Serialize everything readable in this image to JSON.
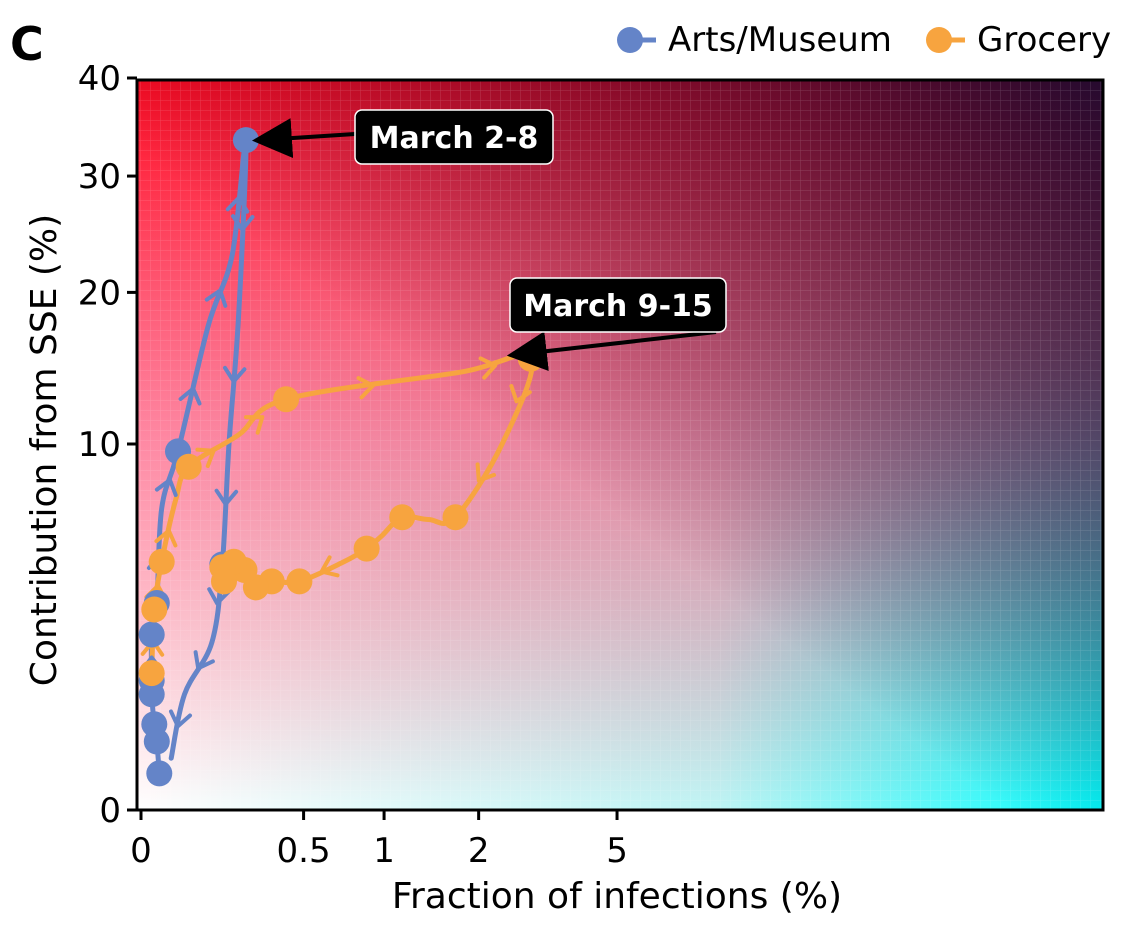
{
  "panel_label": "C",
  "chart_data": {
    "type": "line",
    "xlabel": "Fraction of infections (%)",
    "ylabel": "Contribution from SSE (%)",
    "x_scale": "symlog",
    "y_scale": "sqrt",
    "xlim": [
      0,
      7
    ],
    "ylim": [
      0,
      40
    ],
    "x_ticks": [
      0,
      0.5,
      1,
      2,
      5
    ],
    "x_tick_labels": [
      "0",
      "0.5",
      "1",
      "2",
      "5"
    ],
    "y_ticks": [
      0,
      10,
      20,
      30,
      40
    ],
    "y_tick_labels": [
      "0",
      "10",
      "20",
      "30",
      "40"
    ],
    "legend_position": "top-right",
    "series": [
      {
        "name": "Arts/Museum",
        "color": "#6484c8",
        "points": [
          [
            0.035,
            0.1
          ],
          [
            0.03,
            0.35
          ],
          [
            0.025,
            0.55
          ],
          [
            0.02,
            1.0
          ],
          [
            0.02,
            1.25
          ],
          [
            0.02,
            2.3
          ],
          [
            0.03,
            3.2
          ],
          [
            0.04,
            6.8
          ],
          [
            0.075,
            9.6
          ],
          [
            0.15,
            17.5
          ],
          [
            0.22,
            23
          ],
          [
            0.265,
            33.5
          ],
          [
            0.24,
            18
          ],
          [
            0.21,
            10
          ],
          [
            0.19,
            4.5
          ],
          [
            0.16,
            2.1
          ],
          [
            0.09,
            1.0
          ],
          [
            0.06,
            0.2
          ]
        ]
      },
      {
        "name": "Grocery",
        "color": "#f7a43f",
        "points": [
          [
            0.02,
            1.4
          ],
          [
            0.025,
            3.0
          ],
          [
            0.04,
            4.6
          ],
          [
            0.07,
            7.2
          ],
          [
            0.1,
            8.8
          ],
          [
            0.24,
            10.5
          ],
          [
            0.42,
            12.6
          ],
          [
            1.75,
            14.3
          ],
          [
            2.85,
            15.2
          ],
          [
            2.35,
            10
          ],
          [
            1.7,
            6.4
          ],
          [
            1.4,
            6.3
          ],
          [
            1.15,
            6.4
          ],
          [
            0.98,
            5.6
          ],
          [
            0.87,
            5.1
          ],
          [
            0.72,
            4.6
          ],
          [
            0.48,
            3.9
          ],
          [
            0.36,
            3.9
          ],
          [
            0.3,
            3.7
          ],
          [
            0.26,
            4.3
          ],
          [
            0.225,
            4.6
          ],
          [
            0.19,
            4.4
          ],
          [
            0.195,
            3.9
          ]
        ],
        "markers": [
          [
            0.02,
            1.4
          ],
          [
            0.025,
            3.0
          ],
          [
            0.04,
            4.6
          ],
          [
            0.1,
            8.8
          ],
          [
            0.42,
            12.6
          ],
          [
            2.85,
            15.2
          ],
          [
            1.7,
            6.4
          ],
          [
            1.15,
            6.4
          ],
          [
            0.87,
            5.1
          ],
          [
            0.48,
            3.9
          ],
          [
            0.36,
            3.9
          ],
          [
            0.3,
            3.7
          ],
          [
            0.26,
            4.3
          ],
          [
            0.225,
            4.6
          ],
          [
            0.19,
            4.4
          ],
          [
            0.195,
            3.9
          ]
        ]
      }
    ],
    "arts_markers": [
      [
        0.035,
        0.1
      ],
      [
        0.03,
        0.35
      ],
      [
        0.025,
        0.55
      ],
      [
        0.02,
        1.0
      ],
      [
        0.02,
        1.25
      ],
      [
        0.02,
        2.3
      ],
      [
        0.03,
        3.2
      ],
      [
        0.075,
        9.6
      ],
      [
        0.265,
        33.5
      ],
      [
        0.19,
        4.5
      ]
    ],
    "annotations": [
      {
        "text": "March 2-8",
        "series": "Arts/Museum",
        "target": [
          0.265,
          33.5
        ]
      },
      {
        "text": "March 9-15",
        "series": "Grocery",
        "target": [
          2.85,
          15.2
        ]
      }
    ]
  }
}
